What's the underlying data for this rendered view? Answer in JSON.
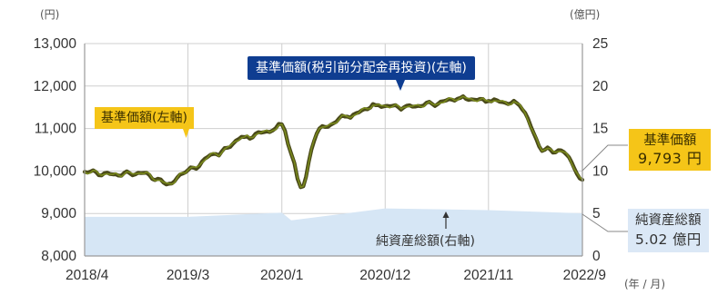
{
  "chart_data": {
    "type": "line",
    "left_axis": {
      "unit": "(円)",
      "ticks": [
        "13,000",
        "12,000",
        "11,000",
        "10,000",
        "9,000",
        "8,000"
      ],
      "ylim": [
        8000,
        13000
      ]
    },
    "right_axis": {
      "unit": "(億円)",
      "ticks": [
        "25",
        "20",
        "15",
        "10",
        "5",
        "0"
      ],
      "ylim": [
        0,
        25
      ]
    },
    "x_axis": {
      "unit": "(年 / 月)",
      "ticks": [
        "2018/4",
        "2019/3",
        "2020/1",
        "2020/12",
        "2021/11",
        "2022/9"
      ]
    },
    "grid": true,
    "series": [
      {
        "name": "基準価額(税引前分配金再投資)(左軸)",
        "axis": "left",
        "color": "#4a4a1a",
        "x": [
          "2018/4",
          "2018/7",
          "2018/10",
          "2019/1",
          "2019/3",
          "2019/6",
          "2019/9",
          "2019/12",
          "2020/1",
          "2020/2",
          "2020/3",
          "2020/5",
          "2020/8",
          "2020/11",
          "2021/2",
          "2021/5",
          "2021/8",
          "2021/11",
          "2022/2",
          "2022/5",
          "2022/7",
          "2022/9"
        ],
        "values": [
          9980,
          9920,
          9950,
          9700,
          10020,
          10400,
          10800,
          10950,
          11100,
          10400,
          9620,
          11000,
          11280,
          11550,
          11500,
          11580,
          11720,
          11650,
          11600,
          10500,
          10450,
          9793
        ]
      },
      {
        "name": "基準価額(左軸)",
        "axis": "left",
        "color": "#7a8a1c",
        "x": [
          "2018/4",
          "2018/7",
          "2018/10",
          "2019/1",
          "2019/3",
          "2019/6",
          "2019/9",
          "2019/12",
          "2020/1",
          "2020/2",
          "2020/3",
          "2020/5",
          "2020/8",
          "2020/11",
          "2021/2",
          "2021/5",
          "2021/8",
          "2021/11",
          "2022/2",
          "2022/5",
          "2022/7",
          "2022/9"
        ],
        "values": [
          9980,
          9920,
          9950,
          9700,
          10020,
          10400,
          10800,
          10950,
          11100,
          10400,
          9620,
          11000,
          11280,
          11550,
          11500,
          11580,
          11720,
          11650,
          11600,
          10500,
          10450,
          9793
        ]
      },
      {
        "name": "純資産総額(右軸)",
        "axis": "right",
        "type": "area",
        "color": "#d6e6f5",
        "x": [
          "2018/4",
          "2019/3",
          "2020/1",
          "2020/2",
          "2020/12",
          "2021/11",
          "2022/9"
        ],
        "values": [
          4.6,
          4.6,
          5.1,
          4.2,
          5.6,
          5.4,
          5.02
        ]
      }
    ]
  },
  "callouts": {
    "nav_left": "基準価額(左軸)",
    "nav_reinvest": "基準価額(税引前分配金再投資)(左軸)",
    "nav_value_title": "基準価額",
    "nav_value": "9,793 円",
    "total_assets_title": "純資産総額",
    "total_assets_value": "5.02 億円",
    "total_assets_axis_label": "純資産総額(右軸)"
  },
  "colors": {
    "gold": "#f5c518",
    "navy": "#0f3d91",
    "light_blue": "#dbe8f6",
    "area_fill": "#d6e6f5",
    "grid": "#cfcfcf",
    "axis": "#9a9a9a"
  }
}
